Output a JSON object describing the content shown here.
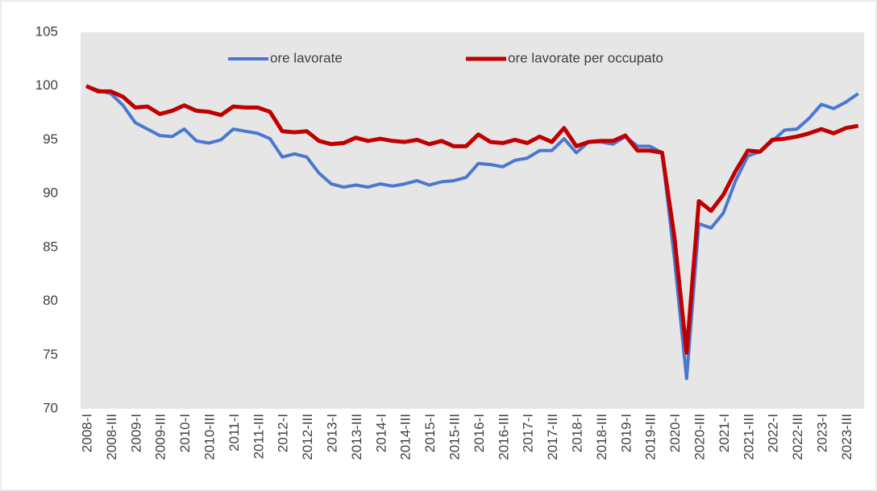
{
  "chart_data": {
    "type": "line",
    "categories": [
      "2008-I",
      null,
      "2008-III",
      null,
      "2009-I",
      null,
      "2009-III",
      null,
      "2010-I",
      null,
      "2010-III",
      null,
      "2011-I",
      null,
      "2011-III",
      null,
      "2012-I",
      null,
      "2012-III",
      null,
      "2013-I",
      null,
      "2013-III",
      null,
      "2014-I",
      null,
      "2014-III",
      null,
      "2015-I",
      null,
      "2015-III",
      null,
      "2016-I",
      null,
      "2016-III",
      null,
      "2017-I",
      null,
      "2017-III",
      null,
      "2018-I",
      null,
      "2018-III",
      null,
      "2019-I",
      null,
      "2019-III",
      null,
      "2020-I",
      null,
      "2020-III",
      null,
      "2021-I",
      null,
      "2021-III",
      null,
      "2022-I",
      null,
      "2022-III",
      null,
      "2023-I",
      null,
      "2023-III",
      null
    ],
    "series": [
      {
        "name": "ore lavorate",
        "color": "#4a78d0",
        "values": [
          100,
          99.6,
          99.3,
          98.2,
          96.6,
          96.0,
          95.4,
          95.3,
          96.0,
          94.9,
          94.7,
          95.0,
          96.0,
          95.8,
          95.6,
          95.1,
          93.4,
          93.7,
          93.4,
          91.9,
          90.9,
          90.6,
          90.8,
          90.6,
          90.9,
          90.7,
          90.9,
          91.2,
          90.8,
          91.1,
          91.2,
          91.5,
          92.8,
          92.7,
          92.5,
          93.1,
          93.3,
          94.0,
          94.0,
          95.1,
          93.8,
          94.8,
          94.8,
          94.6,
          95.3,
          94.4,
          94.4,
          93.8,
          84.0,
          72.8,
          87.2,
          86.8,
          88.2,
          91.2,
          93.5,
          93.9,
          94.9,
          95.9,
          96.0,
          97.0,
          98.3,
          97.9,
          98.5,
          99.3
        ]
      },
      {
        "name": "ore lavorate per occupato",
        "color": "#c00000",
        "values": [
          100,
          99.5,
          99.5,
          99.0,
          98.0,
          98.1,
          97.4,
          97.7,
          98.2,
          97.7,
          97.6,
          97.3,
          98.1,
          98.0,
          98.0,
          97.6,
          95.8,
          95.7,
          95.8,
          94.9,
          94.6,
          94.7,
          95.2,
          94.9,
          95.1,
          94.9,
          94.8,
          95.0,
          94.6,
          94.9,
          94.4,
          94.4,
          95.5,
          94.8,
          94.7,
          95.0,
          94.7,
          95.3,
          94.8,
          96.1,
          94.4,
          94.8,
          94.9,
          94.9,
          95.4,
          94.0,
          94.0,
          93.8,
          86.0,
          75.2,
          89.3,
          88.4,
          89.9,
          92.1,
          94.0,
          93.9,
          95.0,
          95.1,
          95.3,
          95.6,
          96.0,
          95.6,
          96.1,
          96.3
        ]
      }
    ],
    "ylim": [
      70,
      105
    ],
    "yticks": [
      70,
      75,
      80,
      85,
      90,
      95,
      100,
      105
    ],
    "legend": "top",
    "grid": false
  }
}
